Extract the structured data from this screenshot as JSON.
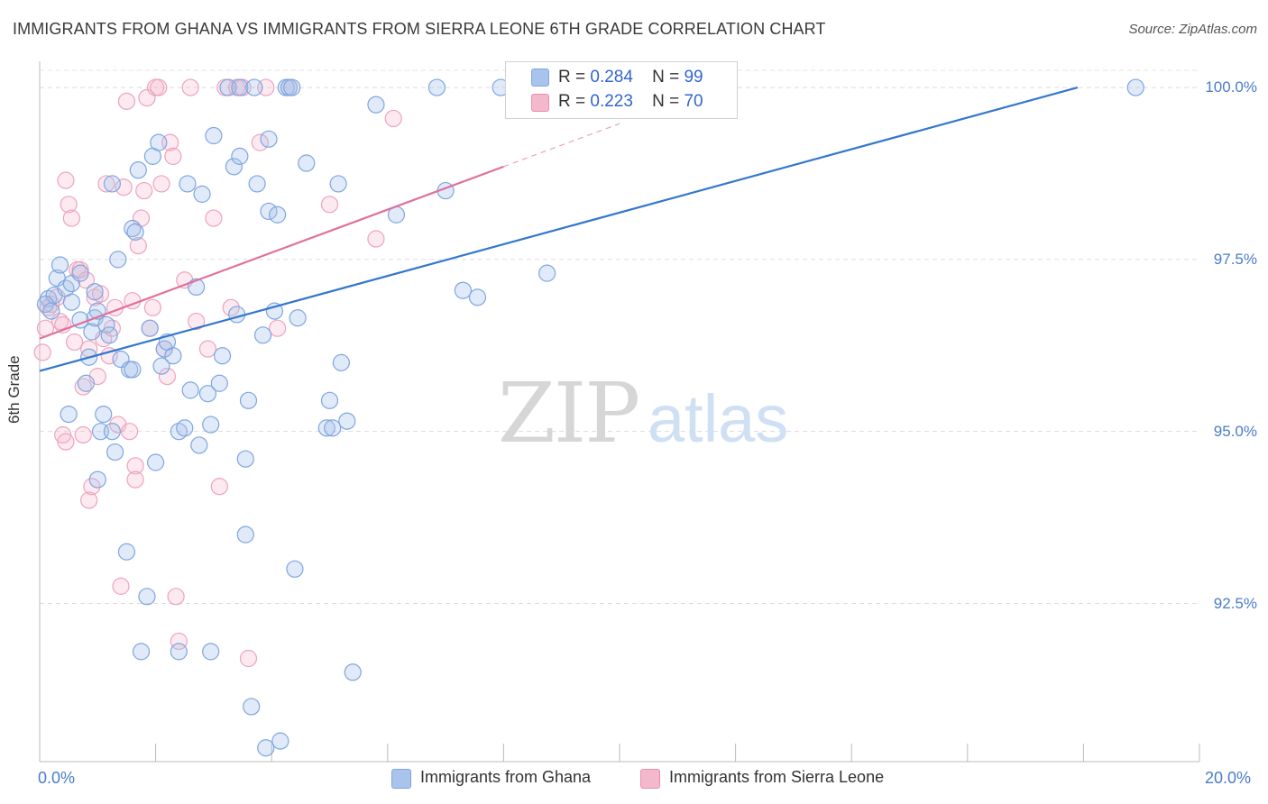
{
  "header": {
    "title": "IMMIGRANTS FROM GHANA VS IMMIGRANTS FROM SIERRA LEONE 6TH GRADE CORRELATION CHART",
    "source": "Source: ZipAtlas.com"
  },
  "watermark": {
    "zip": "ZIP",
    "atlas": "atlas"
  },
  "legend": {
    "rows": [
      {
        "r_label": "R =",
        "r_value": "0.284",
        "n_label": "N =",
        "n_value": "99",
        "color": "#a8c4ec"
      },
      {
        "r_label": "R =",
        "r_value": "0.223",
        "n_label": "N =",
        "n_value": "70",
        "color": "#f4b8cc"
      }
    ]
  },
  "bottom_legend": {
    "items": [
      {
        "label": "Immigrants from Ghana",
        "color": "#a8c4ec"
      },
      {
        "label": "Immigrants from Sierra Leone",
        "color": "#f4b8cc"
      }
    ]
  },
  "chart_data": {
    "type": "scatter",
    "title": "IMMIGRANTS FROM GHANA VS IMMIGRANTS FROM SIERRA LEONE 6TH GRADE CORRELATION CHART",
    "xlabel": "",
    "ylabel": "6th Grade",
    "xlim": [
      0,
      20
    ],
    "ylim": [
      90.2,
      100.25
    ],
    "x_tick_labels": [
      "0.0%",
      "20.0%"
    ],
    "y_ticks": [
      92.5,
      95.0,
      97.5,
      100.0
    ],
    "y_tick_labels": [
      "92.5%",
      "95.0%",
      "97.5%",
      "100.0%"
    ],
    "grid": true,
    "legend_position": "top-center",
    "series": [
      {
        "name": "Immigrants from Ghana",
        "color": "#4a7cc9",
        "trend": {
          "x0": 0.0,
          "y0": 95.88,
          "x1": 17.9,
          "y1": 100.0
        },
        "points": [
          [
            0.15,
            96.93
          ],
          [
            0.25,
            96.98
          ],
          [
            0.3,
            97.23
          ],
          [
            0.35,
            97.42
          ],
          [
            0.45,
            97.08
          ],
          [
            0.5,
            95.25
          ],
          [
            0.55,
            97.15
          ],
          [
            0.55,
            96.88
          ],
          [
            0.7,
            96.62
          ],
          [
            0.7,
            97.3
          ],
          [
            0.95,
            97.03
          ],
          [
            0.8,
            95.7
          ],
          [
            0.85,
            96.08
          ],
          [
            0.9,
            96.45
          ],
          [
            0.95,
            96.65
          ],
          [
            1.0,
            96.75
          ],
          [
            1.0,
            94.3
          ],
          [
            1.05,
            95.0
          ],
          [
            1.1,
            95.25
          ],
          [
            1.15,
            96.55
          ],
          [
            1.2,
            96.4
          ],
          [
            1.25,
            95.0
          ],
          [
            1.25,
            98.6
          ],
          [
            1.3,
            94.7
          ],
          [
            1.35,
            97.5
          ],
          [
            1.4,
            96.05
          ],
          [
            1.5,
            93.25
          ],
          [
            1.55,
            95.9
          ],
          [
            1.6,
            95.9
          ],
          [
            1.6,
            97.95
          ],
          [
            1.65,
            97.9
          ],
          [
            1.7,
            98.8
          ],
          [
            1.75,
            91.8
          ],
          [
            1.9,
            96.5
          ],
          [
            1.95,
            99.0
          ],
          [
            2.0,
            94.55
          ],
          [
            2.05,
            99.2
          ],
          [
            2.1,
            95.95
          ],
          [
            2.15,
            96.2
          ],
          [
            2.2,
            96.3
          ],
          [
            2.3,
            96.1
          ],
          [
            2.4,
            91.8
          ],
          [
            2.4,
            95.0
          ],
          [
            2.5,
            95.05
          ],
          [
            2.55,
            98.6
          ],
          [
            2.6,
            95.6
          ],
          [
            2.7,
            97.1
          ],
          [
            2.75,
            94.8
          ],
          [
            2.8,
            98.45
          ],
          [
            2.9,
            95.55
          ],
          [
            2.95,
            95.1
          ],
          [
            3.0,
            99.3
          ],
          [
            3.1,
            95.7
          ],
          [
            3.15,
            96.1
          ],
          [
            3.25,
            100.0
          ],
          [
            3.35,
            98.85
          ],
          [
            3.4,
            96.7
          ],
          [
            3.45,
            99.0
          ],
          [
            3.45,
            100.0
          ],
          [
            3.55,
            94.6
          ],
          [
            3.55,
            93.5
          ],
          [
            3.6,
            95.45
          ],
          [
            3.65,
            91.0
          ],
          [
            3.7,
            100.0
          ],
          [
            3.75,
            98.6
          ],
          [
            3.85,
            96.4
          ],
          [
            3.9,
            90.4
          ],
          [
            3.95,
            99.25
          ],
          [
            3.95,
            98.2
          ],
          [
            4.05,
            96.75
          ],
          [
            4.1,
            98.15
          ],
          [
            4.15,
            90.5
          ],
          [
            4.25,
            100.0
          ],
          [
            4.3,
            100.0
          ],
          [
            4.35,
            100.0
          ],
          [
            4.4,
            93.0
          ],
          [
            4.45,
            96.65
          ],
          [
            4.6,
            98.9
          ],
          [
            4.95,
            95.05
          ],
          [
            5.0,
            95.45
          ],
          [
            5.05,
            95.05
          ],
          [
            5.15,
            98.6
          ],
          [
            5.2,
            96.0
          ],
          [
            5.3,
            95.15
          ],
          [
            5.8,
            99.75
          ],
          [
            6.15,
            98.15
          ],
          [
            6.85,
            100.0
          ],
          [
            7.0,
            98.5
          ],
          [
            7.3,
            97.05
          ],
          [
            7.55,
            96.95
          ],
          [
            7.95,
            100.0
          ],
          [
            8.4,
            100.0
          ],
          [
            8.75,
            97.3
          ],
          [
            18.9,
            100.0
          ],
          [
            0.1,
            96.85
          ],
          [
            0.2,
            96.75
          ],
          [
            1.85,
            92.6
          ],
          [
            2.95,
            91.8
          ],
          [
            5.4,
            91.5
          ]
        ]
      },
      {
        "name": "Immigrants from Sierra Leone",
        "color": "#e8709a",
        "trend": {
          "x0": 0.0,
          "y0": 96.35,
          "x1": 8.0,
          "y1": 98.85
        },
        "points": [
          [
            0.05,
            96.15
          ],
          [
            0.1,
            96.5
          ],
          [
            0.15,
            96.8
          ],
          [
            0.2,
            96.85
          ],
          [
            0.3,
            96.95
          ],
          [
            0.35,
            96.6
          ],
          [
            0.4,
            96.55
          ],
          [
            0.4,
            94.95
          ],
          [
            0.45,
            94.85
          ],
          [
            0.45,
            98.65
          ],
          [
            0.5,
            98.3
          ],
          [
            0.55,
            98.1
          ],
          [
            0.6,
            96.3
          ],
          [
            0.65,
            97.35
          ],
          [
            0.7,
            97.35
          ],
          [
            0.75,
            94.95
          ],
          [
            0.75,
            95.65
          ],
          [
            0.8,
            97.2
          ],
          [
            0.85,
            96.2
          ],
          [
            0.85,
            94.0
          ],
          [
            0.9,
            94.2
          ],
          [
            0.95,
            96.95
          ],
          [
            1.0,
            95.8
          ],
          [
            1.05,
            97.0
          ],
          [
            1.1,
            96.35
          ],
          [
            1.15,
            98.6
          ],
          [
            1.2,
            96.1
          ],
          [
            1.25,
            96.5
          ],
          [
            1.3,
            96.8
          ],
          [
            1.35,
            95.1
          ],
          [
            1.4,
            92.75
          ],
          [
            1.45,
            98.55
          ],
          [
            1.5,
            99.8
          ],
          [
            1.55,
            95.0
          ],
          [
            1.6,
            96.9
          ],
          [
            1.65,
            94.5
          ],
          [
            1.65,
            94.3
          ],
          [
            1.7,
            97.7
          ],
          [
            1.75,
            98.1
          ],
          [
            1.8,
            98.5
          ],
          [
            1.85,
            99.85
          ],
          [
            1.9,
            96.5
          ],
          [
            1.95,
            96.8
          ],
          [
            2.0,
            100.0
          ],
          [
            2.05,
            100.0
          ],
          [
            2.1,
            98.6
          ],
          [
            2.15,
            96.2
          ],
          [
            2.2,
            95.8
          ],
          [
            2.25,
            99.2
          ],
          [
            2.3,
            99.0
          ],
          [
            2.35,
            92.6
          ],
          [
            2.4,
            91.95
          ],
          [
            2.5,
            97.2
          ],
          [
            2.6,
            100.0
          ],
          [
            2.7,
            96.6
          ],
          [
            2.9,
            96.2
          ],
          [
            3.0,
            98.1
          ],
          [
            3.1,
            94.2
          ],
          [
            3.2,
            100.0
          ],
          [
            3.3,
            96.8
          ],
          [
            3.4,
            100.0
          ],
          [
            3.5,
            100.0
          ],
          [
            3.6,
            91.7
          ],
          [
            3.8,
            99.2
          ],
          [
            3.9,
            100.0
          ],
          [
            4.1,
            96.5
          ],
          [
            4.3,
            100.0
          ],
          [
            5.0,
            98.3
          ],
          [
            5.8,
            97.8
          ],
          [
            6.1,
            99.55
          ]
        ]
      }
    ]
  }
}
